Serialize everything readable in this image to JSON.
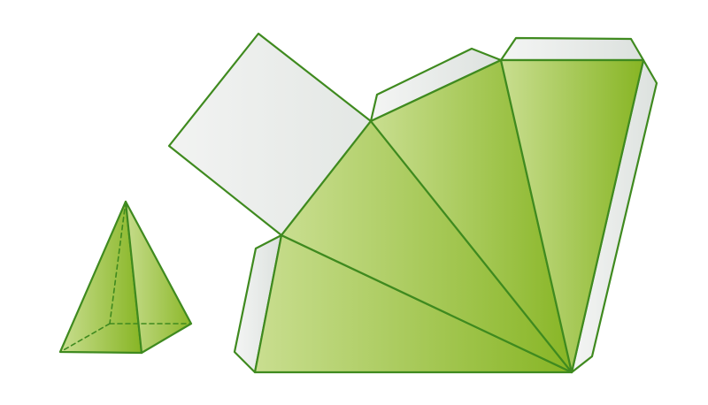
{
  "colors": {
    "background": "#ffffff",
    "stroke": "#3f8a1f",
    "face_light": "#c6dc8c",
    "face_dark": "#86b423",
    "tab_light": "#f1f3f2",
    "tab_dark": "#dde2df"
  },
  "figures": {
    "solid": "square-pyramid",
    "net": "square-pyramid-net-with-glue-tabs"
  }
}
